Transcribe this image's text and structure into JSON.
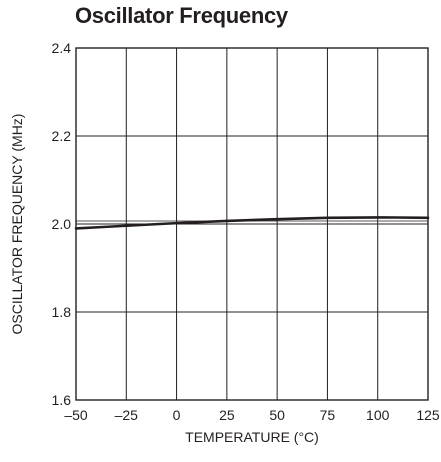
{
  "chart_data": {
    "type": "line",
    "title": "Oscillator Frequency",
    "xlabel": "TEMPERATURE (°C)",
    "ylabel": "OSCILLATOR FREQUENCY (MHz)",
    "xlim": [
      -50,
      125
    ],
    "ylim": [
      1.6,
      2.4
    ],
    "x_ticks": [
      -50,
      -25,
      0,
      25,
      50,
      75,
      100,
      125
    ],
    "x_tick_labels": [
      "–50",
      "–25",
      "0",
      "25",
      "50",
      "75",
      "100",
      "125"
    ],
    "y_ticks": [
      1.6,
      1.8,
      2.0,
      2.2,
      2.4
    ],
    "y_tick_labels": [
      "1.6",
      "1.8",
      "2.0",
      "2.2",
      "2.4"
    ],
    "grid": true,
    "series": [
      {
        "x": [
          -50,
          -25,
          0,
          25,
          50,
          75,
          100,
          125
        ],
        "y": [
          1.99,
          1.996,
          2.002,
          2.007,
          2.011,
          2.014,
          2.015,
          2.014
        ],
        "color": "#231f20"
      }
    ]
  }
}
